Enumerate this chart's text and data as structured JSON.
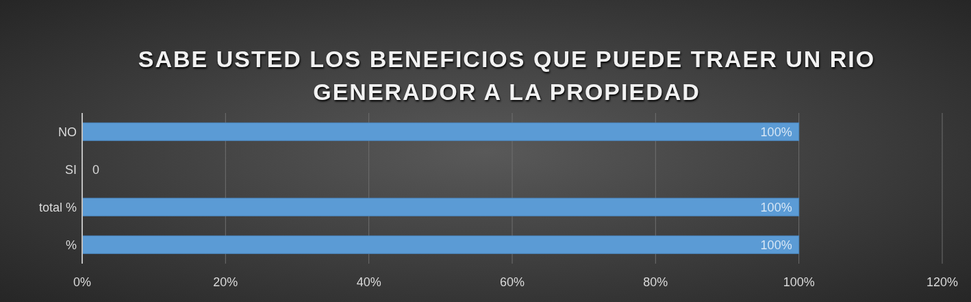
{
  "chart_data": {
    "type": "bar",
    "orientation": "horizontal",
    "title": "SABE USTED LOS BENEFICIOS QUE PUEDE TRAER UN RIO GENERADOR A LA PROPIEDAD",
    "categories": [
      "NO",
      "SI",
      "total %",
      "%"
    ],
    "values": [
      100,
      0,
      100,
      100
    ],
    "value_labels": [
      "100%",
      "0",
      "100%",
      "100%"
    ],
    "color": "#5b9bd5",
    "xlim": [
      0,
      120
    ],
    "xticks": [
      {
        "value": 0,
        "label": "0%"
      },
      {
        "value": 20,
        "label": "20%"
      },
      {
        "value": 40,
        "label": "40%"
      },
      {
        "value": 60,
        "label": "60%"
      },
      {
        "value": 80,
        "label": "80%"
      },
      {
        "value": 100,
        "label": "100%"
      },
      {
        "value": 120,
        "label": "120%"
      }
    ],
    "grid": "x",
    "legend": false
  }
}
